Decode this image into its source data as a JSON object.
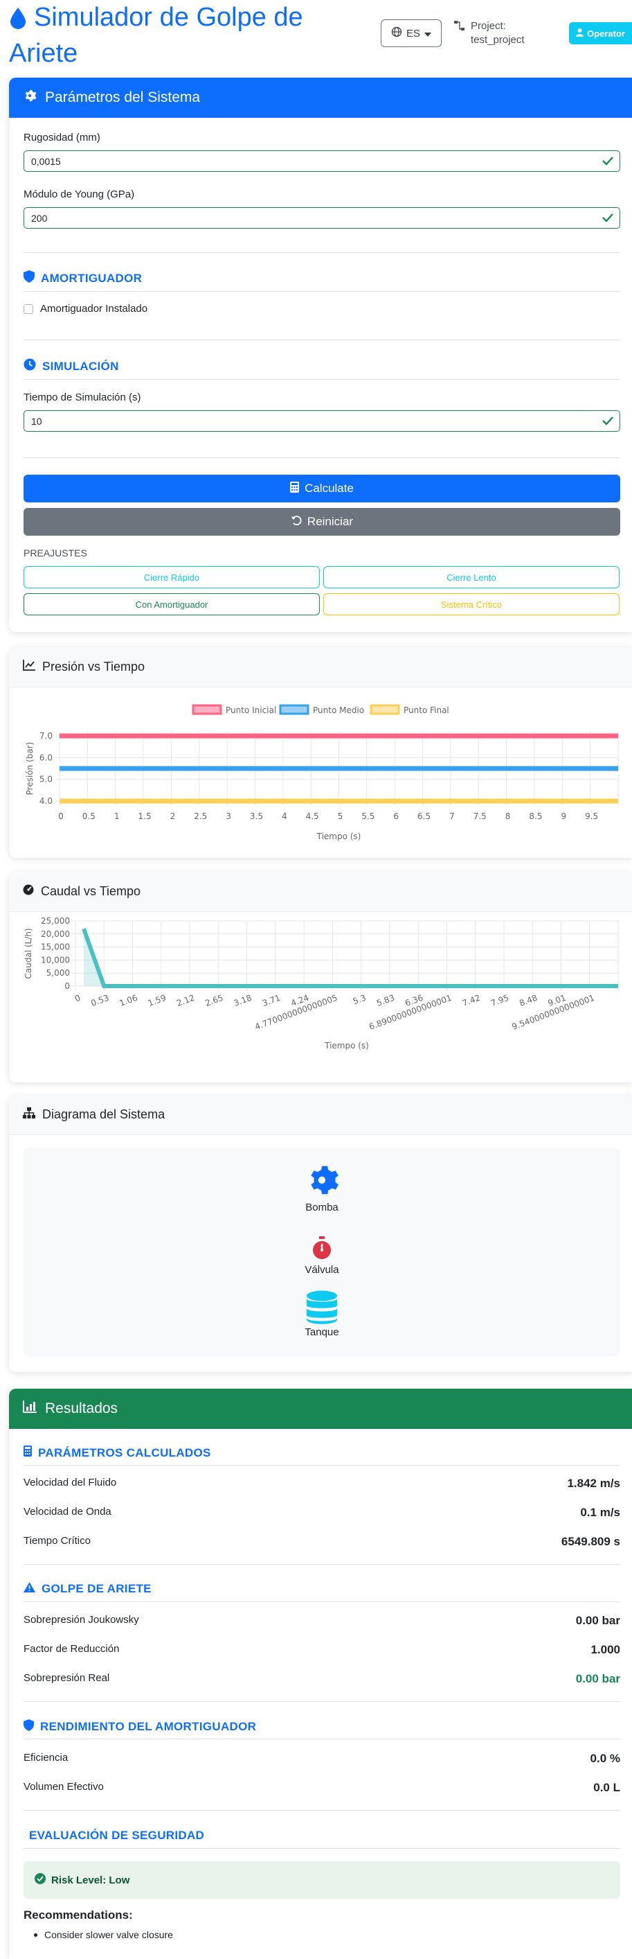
{
  "header": {
    "title": "Simulador de Golpe de Ariete",
    "language": "ES",
    "project_label": "Project:",
    "project_name": "test_project",
    "user_role": "Operator"
  },
  "params": {
    "title": "Parámetros del Sistema",
    "roughness_label": "Rugosidad (mm)",
    "roughness_value": "0,0015",
    "young_label": "Módulo de Young (GPa)",
    "young_value": "200",
    "damper_section": "AMORTIGUADOR",
    "damper_checkbox": "Amortiguador Instalado",
    "simulation_section": "SIMULACIÓN",
    "time_label": "Tiempo de Simulación (s)",
    "time_value": "10",
    "calculate_label": "Calculate",
    "reset_label": "Reiniciar",
    "presets_label": "PREAJUSTES",
    "presets": [
      "Cierre Rápido",
      "Cierre Lento",
      "Con Amortiguador",
      "Sistema Crítico"
    ]
  },
  "pressure_chart": {
    "title": "Presión vs Tiempo",
    "chart_data": {
      "type": "line",
      "xlabel": "Tiempo (s)",
      "ylabel": "Presión (bar)",
      "x": [
        "0",
        "0.5",
        "1",
        "1.5",
        "2",
        "2.5",
        "3",
        "3.5",
        "4",
        "4.5",
        "5",
        "5.5",
        "6",
        "6.5",
        "7",
        "7.5",
        "8",
        "8.5",
        "9",
        "9.5"
      ],
      "yticks": [
        "7.0",
        "6.0",
        "5.0",
        "4.0"
      ],
      "ylim": [
        4.0,
        7.0
      ],
      "series": [
        {
          "name": "Punto Inicial",
          "value": 7.0,
          "color": "#ff6384"
        },
        {
          "name": "Punto Medio",
          "value": 5.5,
          "color": "#36a2eb"
        },
        {
          "name": "Punto Final",
          "value": 4.0,
          "color": "#ffce56"
        }
      ],
      "legend": "top"
    }
  },
  "flow_chart": {
    "title": "Caudal vs Tiempo",
    "chart_data": {
      "type": "area",
      "xlabel": "Tiempo (s)",
      "ylabel": "Caudal (L/h)",
      "x": [
        "0",
        "0.53",
        "1.06",
        "1.59",
        "2.12",
        "2.65",
        "3.18",
        "3.71",
        "4.24",
        "4.770000000000005",
        "5.3",
        "5.83",
        "6.36",
        "6.890000000000001",
        "7.42",
        "7.95",
        "8.48",
        "9.01",
        "9.540000000000001"
      ],
      "yticks": [
        "25,000",
        "20,000",
        "15,000",
        "10,000",
        "5,000",
        "0"
      ],
      "ylim": [
        0,
        25000
      ],
      "values": [
        22000,
        0,
        0,
        0,
        0,
        0,
        0,
        0,
        0,
        0,
        0,
        0,
        0,
        0,
        0,
        0,
        0,
        0,
        0
      ],
      "color": "#4bc0c0"
    }
  },
  "diagram": {
    "title": "Diagrama del Sistema",
    "pump": "Bomba",
    "valve": "Válvula",
    "tank": "Tanque"
  },
  "results": {
    "title": "Resultados",
    "calc_section": "PARÁMETROS CALCULADOS",
    "fluid_velocity_label": "Velocidad del Fluido",
    "fluid_velocity": "1.842 m/s",
    "wave_velocity_label": "Velocidad de Onda",
    "wave_velocity": "0.1 m/s",
    "critical_time_label": "Tiempo Crítico",
    "critical_time": "6549.809 s",
    "hammer_section": "GOLPE DE ARIETE",
    "joukowsky_label": "Sobrepresión Joukowsky",
    "joukowsky": "0.00 bar",
    "reduction_label": "Factor de Reducción",
    "reduction": "1.000",
    "real_label": "Sobrepresión Real",
    "real": "0.00 bar",
    "damper_section": "RENDIMIENTO DEL AMORTIGUADOR",
    "efficiency_label": "Eficiencia",
    "efficiency": "0.0 %",
    "volume_label": "Volumen Efectivo",
    "volume": "0.0 L",
    "safety_section": "EVALUACIÓN DE SEGURIDAD",
    "risk": "Risk Level: Low",
    "recommendations_title": "Recommendations:",
    "recommendations": [
      "Consider slower valve closure"
    ]
  },
  "colors": {
    "primary": "#0d6efd",
    "success": "#198754",
    "secondary": "#6c757d",
    "info": "#0dcaf0",
    "warning": "#ffc107"
  }
}
